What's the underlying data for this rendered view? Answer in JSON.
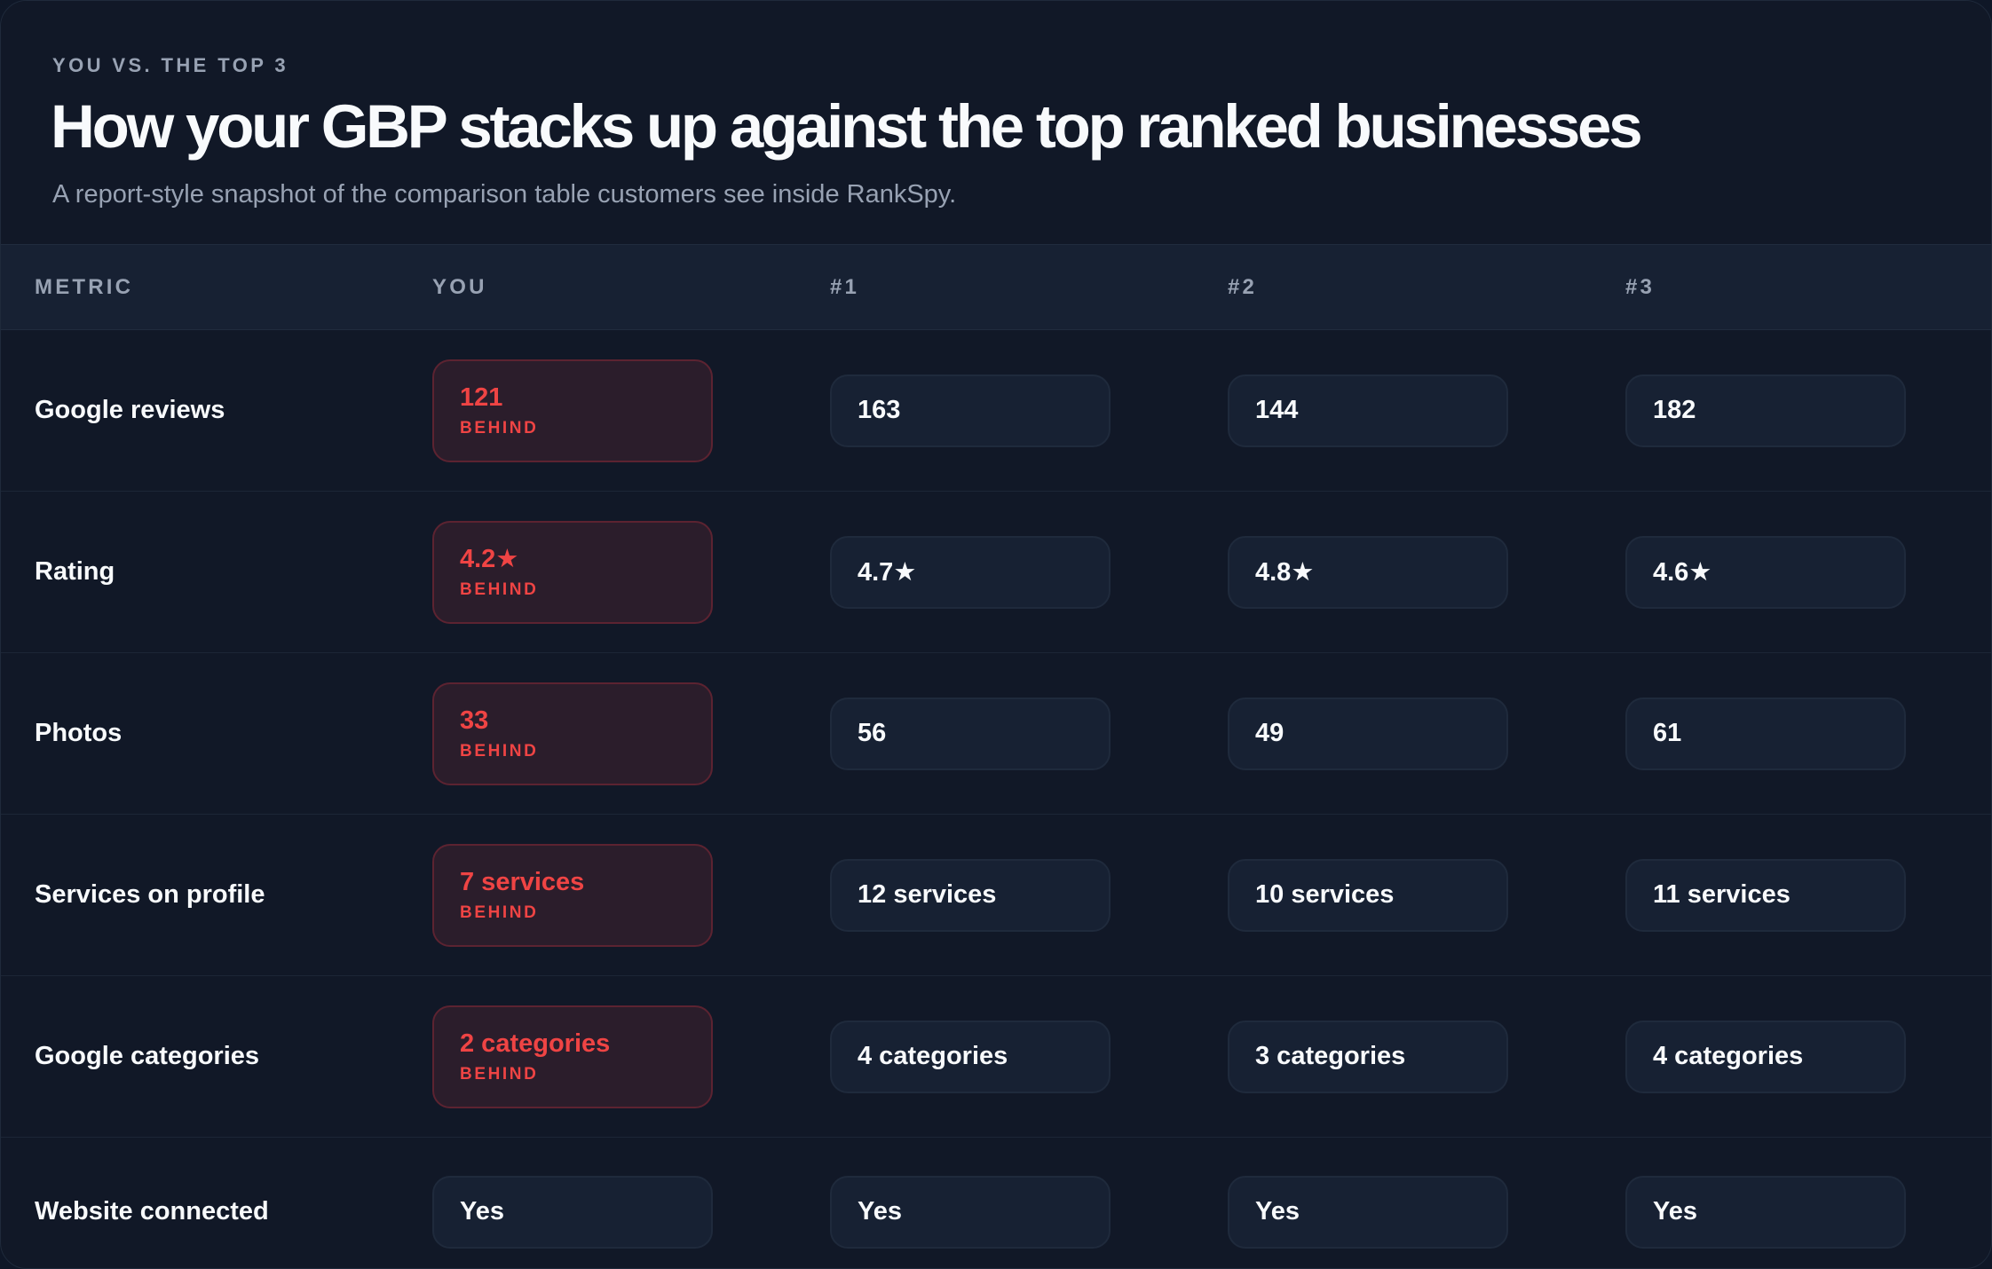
{
  "header": {
    "eyebrow": "YOU VS. THE TOP 3",
    "title": "How your GBP stacks up against the top ranked businesses",
    "subtitle": "A report-style snapshot of the comparison table customers see inside RankSpy."
  },
  "table": {
    "columns": [
      "METRIC",
      "YOU",
      "#1",
      "#2",
      "#3"
    ],
    "behind_label": "BEHIND",
    "colors": {
      "behind": "#ef4444",
      "cell_bg": "#172133",
      "page_bg": "#111827"
    },
    "rows": [
      {
        "metric": "Google reviews",
        "you": "121",
        "you_behind": true,
        "c1": "163",
        "c2": "144",
        "c3": "182"
      },
      {
        "metric": "Rating",
        "you": "4.2★",
        "you_behind": true,
        "c1": "4.7★",
        "c2": "4.8★",
        "c3": "4.6★"
      },
      {
        "metric": "Photos",
        "you": "33",
        "you_behind": true,
        "c1": "56",
        "c2": "49",
        "c3": "61"
      },
      {
        "metric": "Services on profile",
        "you": "7 services",
        "you_behind": true,
        "c1": "12 services",
        "c2": "10 services",
        "c3": "11 services"
      },
      {
        "metric": "Google categories",
        "you": "2 categories",
        "you_behind": true,
        "c1": "4 categories",
        "c2": "3 categories",
        "c3": "4 categories"
      },
      {
        "metric": "Website connected",
        "you": "Yes",
        "you_behind": false,
        "c1": "Yes",
        "c2": "Yes",
        "c3": "Yes"
      }
    ]
  }
}
